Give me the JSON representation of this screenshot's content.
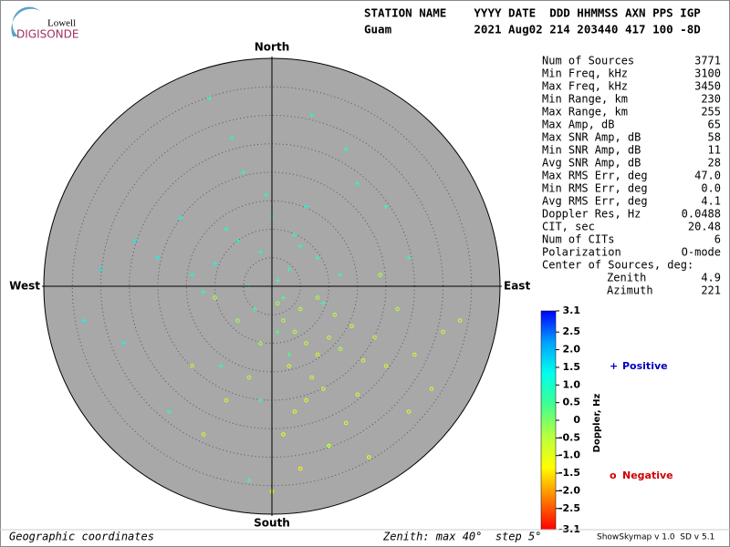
{
  "logo": {
    "top": "Lowell",
    "bottom": "DIGISONDE"
  },
  "header": {
    "line1": "STATION NAME    YYYY DATE  DDD HHMMSS AXN PPS IGP",
    "line2": "Guam            2021 Aug02 214 203440 417 100 -8D"
  },
  "stats": {
    "rows": [
      [
        "Num of Sources",
        "3771"
      ],
      [
        "Min Freq, kHz",
        "3100"
      ],
      [
        "Max Freq, kHz",
        "3450"
      ],
      [
        "Min Range, km",
        "230"
      ],
      [
        "Max Range, km",
        "255"
      ],
      [
        "Max Amp, dB",
        "65"
      ],
      [
        "Max SNR Amp, dB",
        "58"
      ],
      [
        "Min SNR Amp, dB",
        "11"
      ],
      [
        "Avg SNR Amp, dB",
        "28"
      ],
      [
        "Max RMS Err, deg",
        "47.0"
      ],
      [
        "Min RMS Err, deg",
        "0.0"
      ],
      [
        "Avg RMS Err, deg",
        "4.1"
      ],
      [
        "Doppler Res, Hz",
        "0.0488"
      ],
      [
        "CIT, sec",
        "20.48"
      ],
      [
        "Num of CITs",
        "6"
      ],
      [
        "Polarization",
        "O-mode"
      ]
    ],
    "center_title": "Center of Sources, deg:",
    "center_rows": [
      [
        "Zenith",
        "4.9"
      ],
      [
        "Azimuth",
        "221"
      ]
    ]
  },
  "directions": {
    "north": "North",
    "south": "South",
    "east": "East",
    "west": "West"
  },
  "footer": {
    "left": "Geographic coordinates",
    "middle": "Zenith: max 40°  step 5°",
    "right": "ShowSkymap v 1.0  SD v 5.1"
  },
  "chart_data": {
    "type": "scatter",
    "xlim": [
      -40,
      40
    ],
    "ylim": [
      -40,
      40
    ],
    "rings": [
      5,
      10,
      15,
      20,
      25,
      30,
      35
    ],
    "grid": true,
    "color_by": "doppler",
    "series": [
      {
        "name": "Positive",
        "color": "#0000c0",
        "marker": "+",
        "x": [
          -2,
          3,
          -6,
          1,
          -10,
          5,
          -4,
          0,
          8,
          -14,
          2,
          -8,
          -1,
          4,
          -20,
          12,
          -3,
          6,
          -12,
          -5,
          1,
          -16,
          9,
          -7,
          3,
          -24,
          15,
          -2,
          -9,
          7,
          -30,
          20,
          -18,
          10,
          -26,
          -11,
          24,
          -33,
          -4,
          13
        ],
        "y": [
          6,
          3,
          8,
          1,
          4,
          7,
          0,
          12,
          5,
          2,
          -2,
          10,
          16,
          9,
          5,
          2,
          -4,
          14,
          -1,
          20,
          -8,
          12,
          -3,
          26,
          -12,
          8,
          18,
          -20,
          -14,
          30,
          3,
          14,
          -22,
          -28,
          -10,
          33,
          5,
          -6,
          -34,
          24
        ],
        "doppler": [
          0.9,
          0.7,
          1.0,
          0.6,
          1.1,
          0.8,
          0.5,
          1.0,
          0.7,
          1.2,
          0.4,
          0.9,
          1.0,
          0.8,
          1.3,
          0.6,
          0.5,
          1.1,
          0.9,
          1.0,
          0.4,
          1.2,
          0.6,
          1.0,
          0.5,
          1.4,
          0.8,
          0.6,
          0.9,
          1.0,
          1.5,
          0.7,
          0.8,
          0.6,
          1.2,
          1.0,
          0.7,
          1.3,
          0.5,
          0.9
        ]
      },
      {
        "name": "Negative",
        "color": "#d00000",
        "marker": "o",
        "x": [
          4,
          6,
          2,
          8,
          5,
          10,
          3,
          12,
          7,
          1,
          14,
          9,
          -2,
          16,
          6,
          11,
          4,
          18,
          -4,
          13,
          8,
          20,
          -6,
          15,
          2,
          22,
          10,
          -8,
          25,
          17,
          -10,
          28,
          5,
          -12,
          30,
          19,
          0,
          -14,
          24,
          33
        ],
        "y": [
          -8,
          -10,
          -6,
          -12,
          -4,
          -9,
          -14,
          -11,
          -16,
          -3,
          -7,
          -18,
          -10,
          -13,
          -20,
          -5,
          -22,
          -9,
          -16,
          -24,
          -2,
          -14,
          -6,
          -19,
          -26,
          -4,
          -28,
          -20,
          -12,
          -30,
          -2,
          -18,
          -32,
          -26,
          -8,
          2,
          -36,
          -14,
          -22,
          -6
        ],
        "doppler": [
          -0.5,
          -0.6,
          -0.4,
          -0.7,
          -0.5,
          -0.6,
          -0.8,
          -0.5,
          -0.7,
          -0.3,
          -0.6,
          -0.8,
          -0.4,
          -0.7,
          -0.9,
          -0.5,
          -1.0,
          -0.6,
          -0.5,
          -0.9,
          -0.4,
          -0.7,
          -0.3,
          -0.8,
          -1.1,
          -0.5,
          -1.0,
          -0.6,
          -0.7,
          -1.2,
          -0.4,
          -0.8,
          -1.3,
          -0.7,
          -0.6,
          -0.5,
          -1.4,
          -0.6,
          -0.9,
          -0.7
        ]
      }
    ],
    "colorbar": {
      "label": "Doppler, Hz",
      "lim": [
        -3.1,
        3.1
      ],
      "ticks": [
        3.1,
        2.5,
        {
          "value": 2,
          "label": "2.0"
        },
        1.5,
        {
          "value": 1,
          "label": "1.0"
        },
        0.5,
        0,
        -0.5,
        {
          "value": -1,
          "label": "-1.0"
        },
        -1.5,
        {
          "value": -2,
          "label": "-2.0"
        },
        -2.5,
        -3.1
      ],
      "colors": [
        "#0000ff",
        "#00a0ff",
        "#00ffee",
        "#40ff90",
        "#b8ff40",
        "#ffff00",
        "#ff8000",
        "#ff0000"
      ]
    }
  }
}
